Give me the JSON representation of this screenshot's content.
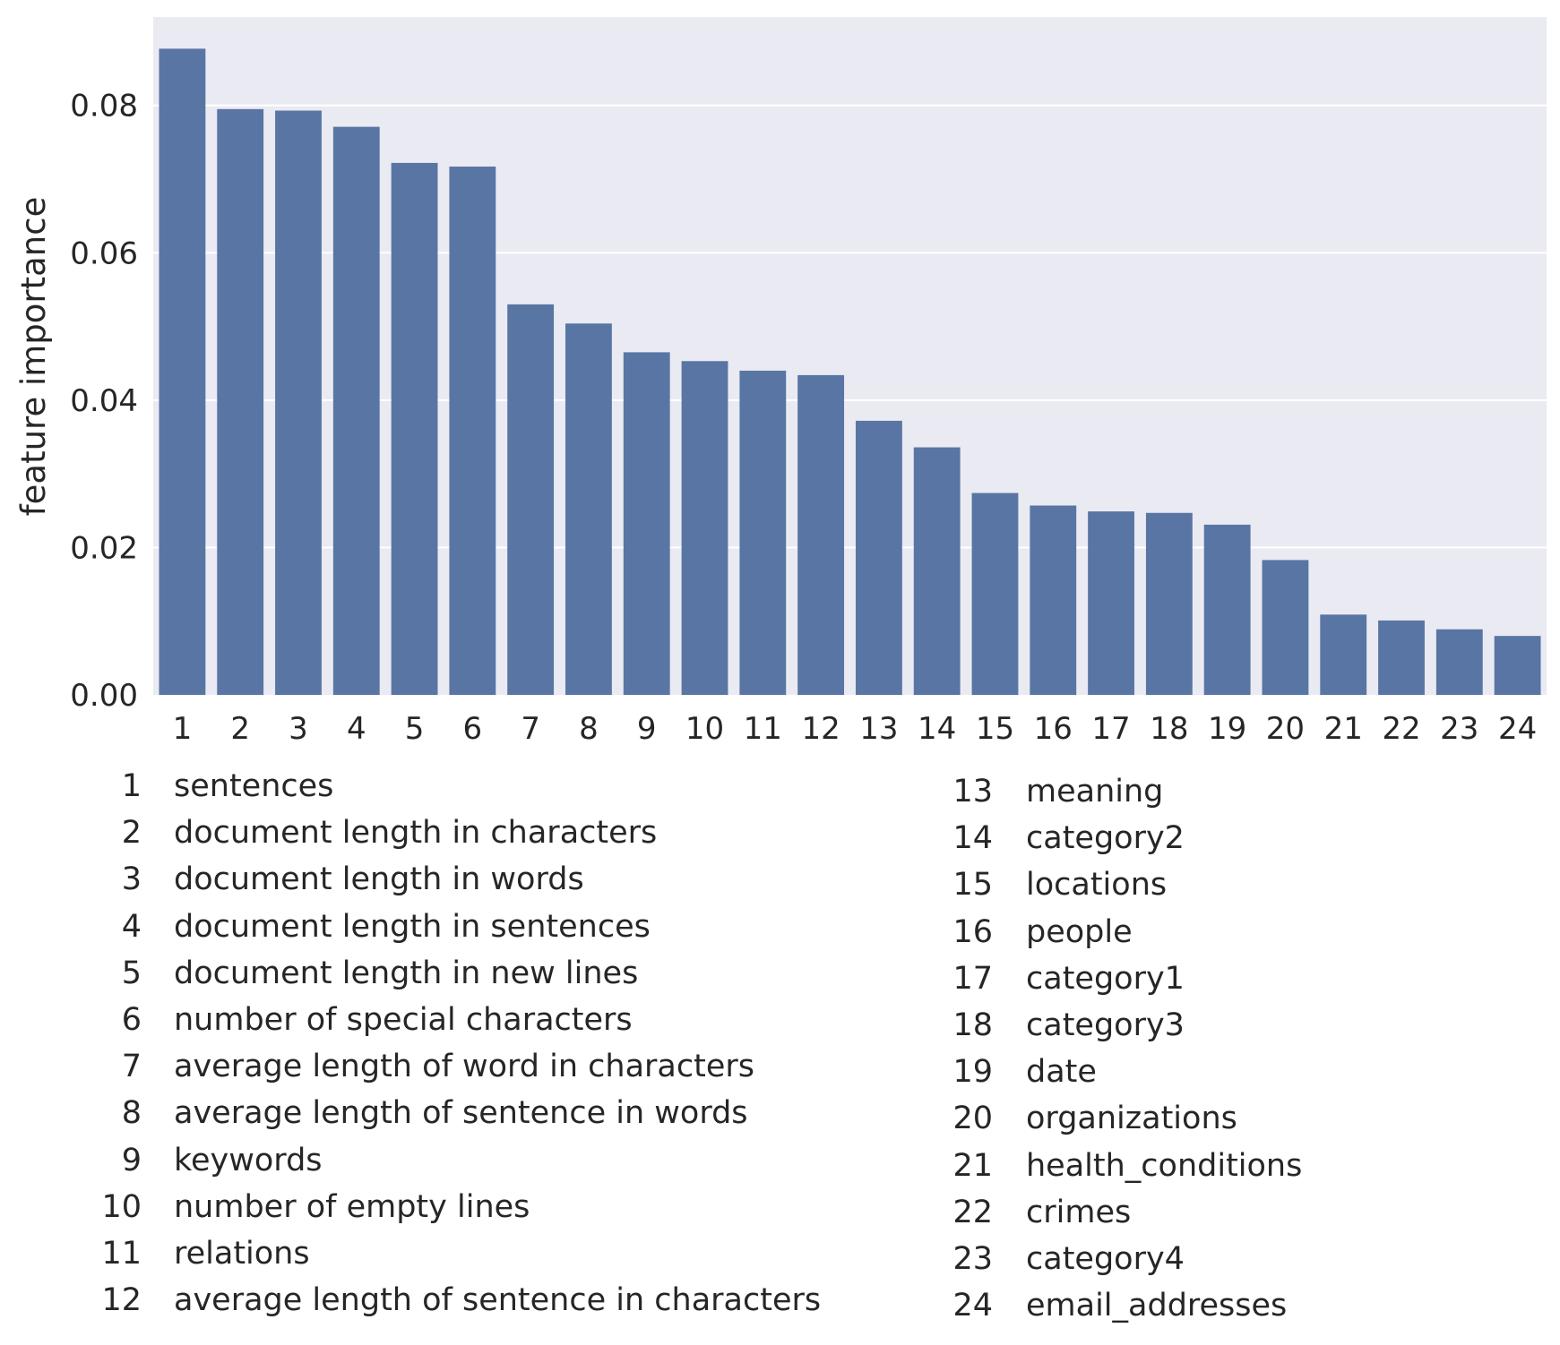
{
  "chart_data": {
    "type": "bar",
    "xlabel": "",
    "ylabel": "feature importance",
    "ylim": [
      0,
      0.092
    ],
    "yticks": [
      "0.00",
      "0.02",
      "0.04",
      "0.06",
      "0.08"
    ],
    "grid": true,
    "categories": [
      "1",
      "2",
      "3",
      "4",
      "5",
      "6",
      "7",
      "8",
      "9",
      "10",
      "11",
      "12",
      "13",
      "14",
      "15",
      "16",
      "17",
      "18",
      "19",
      "20",
      "21",
      "22",
      "23",
      "24"
    ],
    "values": [
      0.0877,
      0.0795,
      0.0793,
      0.0771,
      0.0722,
      0.0717,
      0.053,
      0.0504,
      0.0465,
      0.0453,
      0.044,
      0.0434,
      0.0372,
      0.0336,
      0.0274,
      0.0257,
      0.0249,
      0.0247,
      0.0231,
      0.0183,
      0.0109,
      0.0101,
      0.0089,
      0.008
    ],
    "bar_color": "#5975a4",
    "background_color": "#eaeaf2",
    "grid_color": "#ffffff"
  },
  "legend": {
    "left_column": [
      {
        "num": "1",
        "label": "sentences"
      },
      {
        "num": "2",
        "label": "document length in characters"
      },
      {
        "num": "3",
        "label": "document length in words"
      },
      {
        "num": "4",
        "label": "document length in sentences"
      },
      {
        "num": "5",
        "label": "document length in new lines"
      },
      {
        "num": "6",
        "label": "number of special characters"
      },
      {
        "num": "7",
        "label": "average length of word in characters"
      },
      {
        "num": "8",
        "label": "average length of sentence in words"
      },
      {
        "num": "9",
        "label": "keywords"
      },
      {
        "num": "10",
        "label": "number of empty lines"
      },
      {
        "num": "11",
        "label": "relations"
      },
      {
        "num": "12",
        "label": "average length of sentence in characters"
      }
    ],
    "right_column": [
      {
        "num": "13",
        "label": "meaning"
      },
      {
        "num": "14",
        "label": "category2"
      },
      {
        "num": "15",
        "label": "locations"
      },
      {
        "num": "16",
        "label": "people"
      },
      {
        "num": "17",
        "label": "category1"
      },
      {
        "num": "18",
        "label": "category3"
      },
      {
        "num": "19",
        "label": "date"
      },
      {
        "num": "20",
        "label": "organizations"
      },
      {
        "num": "21",
        "label": "health_conditions"
      },
      {
        "num": "22",
        "label": "crimes"
      },
      {
        "num": "23",
        "label": "category4"
      },
      {
        "num": "24",
        "label": "email_addresses"
      }
    ]
  }
}
